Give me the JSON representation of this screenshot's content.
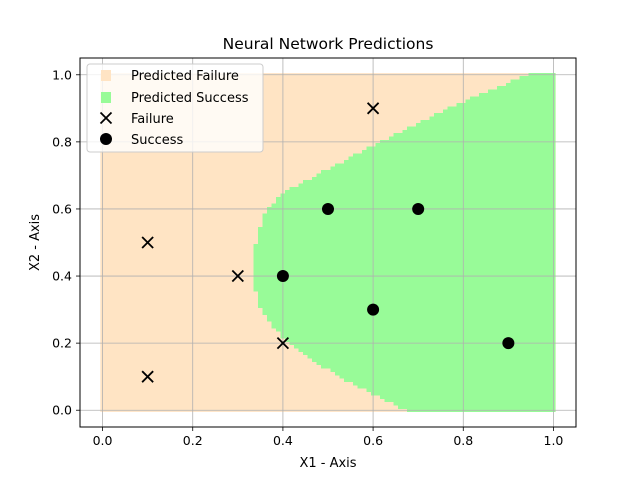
{
  "chart_data": {
    "type": "scatter",
    "title": "Neural Network Predictions",
    "xlabel": "X1 - Axis",
    "ylabel": "X2 - Axis",
    "xlim": [
      -0.05,
      1.05
    ],
    "ylim": [
      -0.05,
      1.05
    ],
    "xticks": [
      "0.0",
      "0.2",
      "0.4",
      "0.6",
      "0.8",
      "1.0"
    ],
    "yticks": [
      "0.0",
      "0.2",
      "0.4",
      "0.6",
      "0.8",
      "1.0"
    ],
    "grid": true,
    "legend_position": "top-left",
    "regions": [
      {
        "name": "Predicted Failure",
        "color": "#ffe4c4"
      },
      {
        "name": "Predicted Success",
        "color": "#98fb98"
      }
    ],
    "success_boundary": {
      "y": [
        0.0,
        0.05,
        0.1,
        0.15,
        0.2,
        0.25,
        0.3,
        0.35,
        0.4,
        0.45,
        0.5,
        0.55,
        0.6,
        0.65,
        0.7,
        0.75,
        0.8,
        0.85,
        0.9,
        0.95,
        1.0
      ],
      "x_min": [
        0.68,
        0.6,
        0.53,
        0.47,
        0.42,
        0.38,
        0.355,
        0.345,
        0.34,
        0.34,
        0.345,
        0.355,
        0.37,
        0.41,
        0.48,
        0.55,
        0.62,
        0.7,
        0.77,
        0.86,
        0.95
      ]
    },
    "series": [
      {
        "name": "Failure",
        "marker": "x",
        "color": "#000000",
        "points": [
          [
            0.1,
            0.5
          ],
          [
            0.1,
            0.1
          ],
          [
            0.3,
            0.4
          ],
          [
            0.4,
            0.2
          ],
          [
            0.6,
            0.9
          ]
        ]
      },
      {
        "name": "Success",
        "marker": "o",
        "color": "#000000",
        "points": [
          [
            0.4,
            0.4
          ],
          [
            0.5,
            0.6
          ],
          [
            0.6,
            0.3
          ],
          [
            0.7,
            0.6
          ],
          [
            0.9,
            0.2
          ]
        ]
      }
    ]
  }
}
